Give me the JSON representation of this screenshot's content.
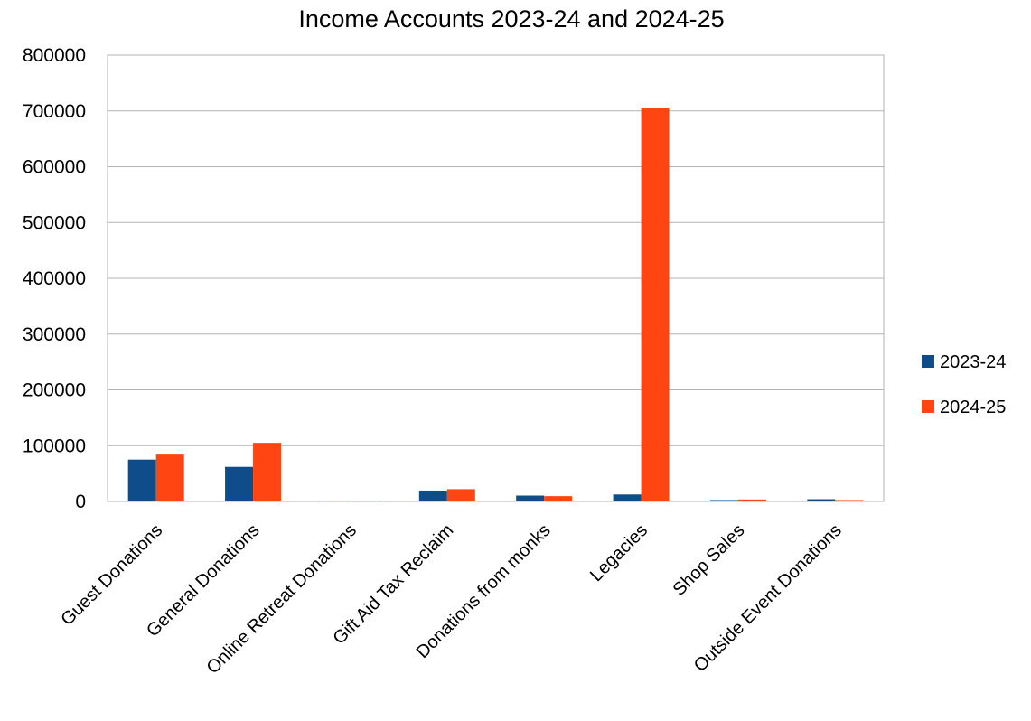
{
  "chart_data": {
    "type": "bar",
    "title": "Income Accounts 2023-24 and 2024-25",
    "xlabel": "",
    "ylabel": "",
    "ylim": [
      0,
      800000
    ],
    "yticks": [
      0,
      100000,
      200000,
      300000,
      400000,
      500000,
      600000,
      700000,
      800000
    ],
    "ytick_labels": [
      "0",
      "100000",
      "200000",
      "300000",
      "400000",
      "500000",
      "600000",
      "700000",
      "800000"
    ],
    "grid": true,
    "legend_position": "right",
    "categories": [
      "Guest Donations",
      "General Donations",
      "Online Retreat Donations",
      "Gift Aid Tax Reclaim",
      "Donations from monks",
      "Legacies",
      "Shop Sales",
      "Outside Event Donations"
    ],
    "series": [
      {
        "name": "2023-24",
        "color": "#0f4c8a",
        "values": [
          75000,
          62000,
          500,
          19500,
          10500,
          12500,
          2500,
          4000
        ]
      },
      {
        "name": "2024-25",
        "color": "#ff4511",
        "values": [
          84000,
          105000,
          300,
          22000,
          9500,
          706000,
          3500,
          2500
        ]
      }
    ]
  }
}
